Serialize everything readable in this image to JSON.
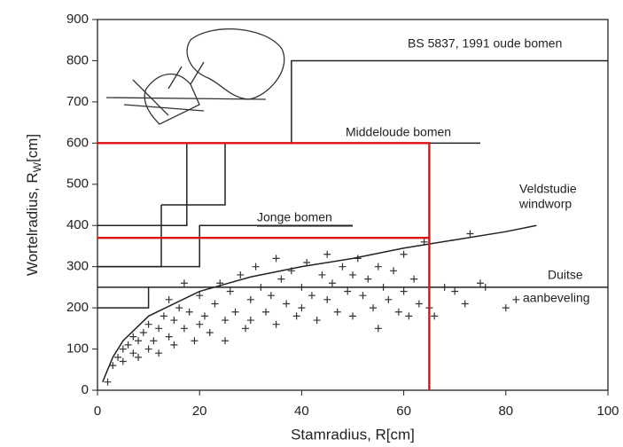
{
  "chart_data": {
    "type": "scatter",
    "xlabel": "Stamradius, R[cm]",
    "ylabel": {
      "text": "Wortelradius, R",
      "sub": "W",
      "unit": "[cm]"
    },
    "xlim": [
      0,
      100
    ],
    "ylim": [
      0,
      900
    ],
    "xticks": [
      0,
      20,
      40,
      60,
      80,
      100
    ],
    "yticks": [
      0,
      100,
      200,
      300,
      400,
      500,
      600,
      700,
      800,
      900
    ],
    "annotations": [
      "BS 5837, 1991 oude bomen",
      "Middeloude bomen",
      "Jonge bomen",
      "Veldstudie",
      "windworp",
      "Duitse",
      "aanbeveling"
    ],
    "series": [
      {
        "kind": "scatter",
        "marker": "+",
        "color": "#333333",
        "x": [
          2,
          3,
          4,
          5,
          5,
          6,
          7,
          7,
          8,
          8,
          9,
          10,
          10,
          11,
          12,
          12,
          13,
          14,
          14,
          15,
          15,
          16,
          17,
          17,
          18,
          19,
          20,
          20,
          21,
          22,
          23,
          24,
          25,
          25,
          26,
          27,
          28,
          29,
          30,
          30,
          31,
          32,
          33,
          34,
          35,
          35,
          36,
          37,
          38,
          39,
          40,
          40,
          41,
          42,
          43,
          44,
          45,
          45,
          46,
          47,
          48,
          49,
          50,
          50,
          51,
          52,
          53,
          54,
          55,
          55,
          56,
          57,
          58,
          59,
          60,
          60,
          61,
          62,
          63,
          64,
          65,
          66,
          68,
          70,
          72,
          73,
          75,
          76,
          80,
          82
        ],
        "values": [
          20,
          60,
          80,
          100,
          70,
          110,
          90,
          130,
          120,
          80,
          140,
          100,
          160,
          120,
          150,
          90,
          180,
          130,
          220,
          170,
          110,
          200,
          150,
          260,
          190,
          120,
          230,
          160,
          180,
          140,
          210,
          260,
          170,
          120,
          240,
          190,
          280,
          150,
          220,
          170,
          300,
          250,
          190,
          230,
          320,
          160,
          270,
          210,
          290,
          180,
          250,
          200,
          310,
          230,
          170,
          280,
          330,
          220,
          260,
          190,
          300,
          240,
          280,
          180,
          320,
          230,
          270,
          200,
          300,
          150,
          250,
          220,
          290,
          190,
          240,
          330,
          180,
          270,
          210,
          360,
          200,
          180,
          250,
          240,
          210,
          380,
          260,
          250,
          200,
          220
        ]
      },
      {
        "kind": "line",
        "color": "#222222",
        "x": [
          1,
          3,
          5,
          10,
          15,
          20,
          30,
          40,
          50,
          60,
          70,
          80,
          86
        ],
        "values": [
          20,
          80,
          120,
          180,
          210,
          240,
          275,
          300,
          320,
          345,
          365,
          385,
          400
        ]
      },
      {
        "kind": "line",
        "color": "#222222",
        "x": [
          38,
          38,
          100
        ],
        "values": [
          600,
          800,
          800
        ]
      },
      {
        "kind": "line",
        "color": "#222222",
        "x": [
          0,
          75
        ],
        "values": [
          600,
          600
        ]
      },
      {
        "kind": "line",
        "color": "#222222",
        "x": [
          0,
          17.5,
          17.5
        ],
        "values": [
          400,
          400,
          600
        ]
      },
      {
        "kind": "line",
        "color": "#222222",
        "x": [
          12.5,
          25,
          25
        ],
        "values": [
          450,
          450,
          600
        ]
      },
      {
        "kind": "line",
        "color": "#222222",
        "x": [
          0,
          12.5,
          12.5
        ],
        "values": [
          300,
          300,
          450
        ]
      },
      {
        "kind": "line",
        "color": "#222222",
        "x": [
          0,
          20,
          20,
          50
        ],
        "values": [
          300,
          300,
          400,
          400
        ]
      },
      {
        "kind": "line",
        "color": "#222222",
        "x": [
          0,
          10,
          10,
          100
        ],
        "values": [
          200,
          200,
          250,
          250
        ]
      },
      {
        "kind": "line",
        "color": "#222222",
        "x": [
          0,
          10
        ],
        "values": [
          250,
          250
        ]
      },
      {
        "kind": "line",
        "color": "#dd1111",
        "x": [
          0,
          65,
          65
        ],
        "values": [
          600,
          600,
          0
        ]
      },
      {
        "kind": "line",
        "color": "#dd1111",
        "x": [
          0,
          65
        ],
        "values": [
          370,
          370
        ]
      }
    ]
  }
}
